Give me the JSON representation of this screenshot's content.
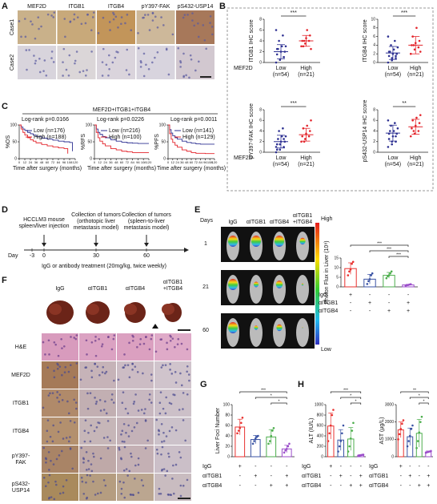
{
  "figure": {
    "panel_labels": [
      "A",
      "B",
      "C",
      "D",
      "E",
      "F",
      "G",
      "H"
    ],
    "a": {
      "columns": [
        "MEF2D",
        "ITGB1",
        "ITGB4",
        "pY397-FAK",
        "pS432-USP14"
      ],
      "rows": [
        "Case1",
        "Case2"
      ]
    },
    "b": {
      "group_label": "MEF2D"
    },
    "c": {
      "title": "MEF2D+ITGB1+ITGB4"
    },
    "d": {
      "injection": [
        "HCCLM3 mouse",
        "spleen/liver injection"
      ],
      "collection_1": [
        "Collection of tumors",
        "(orthotopic liver",
        "metastasis model)"
      ],
      "collection_2": [
        "Collection of tumors",
        "(spleen-to-liver",
        "metastasis model)"
      ],
      "day_label": "Day",
      "days": [
        "-3",
        "0",
        "30",
        "60"
      ],
      "treatment": "IgG or antibody treatment (20mg/kg, twice weekly)"
    },
    "e": {
      "columns": [
        "IgG",
        "αITGB1",
        "αITGB4"
      ],
      "combo": [
        "αITGB1",
        "+ITGB4"
      ],
      "days_label": "Days",
      "days": [
        "1",
        "21",
        "60"
      ],
      "scale_high": "High",
      "scale_low": "Low"
    },
    "f": {
      "columns": [
        "IgG",
        "αITGB1",
        "αITGB4"
      ],
      "combo": [
        "αITGB1",
        "+ITGB4"
      ],
      "rows": [
        [
          "H&E"
        ],
        [
          "MEF2D"
        ],
        [
          "ITGB1"
        ],
        [
          "ITGB4"
        ],
        [
          "pY397-",
          "FAK"
        ],
        [
          "pS432-",
          "USP14"
        ]
      ]
    }
  },
  "chart_data": [
    {
      "type": "dot",
      "ylabel": "ITGB1 IHC score",
      "categories": [
        "Low",
        "High"
      ],
      "n_labels": [
        "(n=54)",
        "(n=21)"
      ],
      "ylim": [
        0,
        8
      ],
      "yticks": [
        0,
        2,
        4,
        6,
        8
      ],
      "significance": "***",
      "groups": [
        {
          "color": "#2e3192",
          "mean": 2,
          "sd": 1.3,
          "points": [
            0,
            0.5,
            1,
            1.5,
            2,
            2,
            2.5,
            3,
            3,
            4,
            5,
            6,
            0.5,
            1,
            2.5
          ]
        },
        {
          "color": "#e3242b",
          "mean": 4,
          "sd": 1,
          "points": [
            3,
            3.5,
            4,
            4,
            4.5,
            5,
            3,
            6,
            2.5,
            4
          ]
        }
      ]
    },
    {
      "type": "dot",
      "ylabel": "ITGB4 IHC score",
      "categories": [
        "Low",
        "High"
      ],
      "n_labels": [
        "(n=54)",
        "(n=21)"
      ],
      "ylim": [
        0,
        10
      ],
      "yticks": [
        0,
        2,
        4,
        6,
        8,
        10
      ],
      "significance": "***",
      "groups": [
        {
          "color": "#2e3192",
          "mean": 2.2,
          "sd": 1.5,
          "points": [
            0,
            0.5,
            1,
            1.5,
            2,
            2,
            2.5,
            3,
            3.5,
            4,
            5,
            6,
            1,
            1.5,
            2.5
          ]
        },
        {
          "color": "#e3242b",
          "mean": 4,
          "sd": 2,
          "points": [
            2,
            3,
            3.5,
            4,
            4.5,
            5,
            6,
            8,
            2.5,
            4
          ]
        }
      ]
    },
    {
      "type": "dot",
      "ylabel": "pY397-FAK IHC score",
      "categories": [
        "Low",
        "High"
      ],
      "n_labels": [
        "(n=54)",
        "(n=21)"
      ],
      "ylim": [
        0,
        8
      ],
      "yticks": [
        0,
        2,
        4,
        6,
        8
      ],
      "significance": "***",
      "groups": [
        {
          "color": "#2e3192",
          "mean": 2,
          "sd": 1.2,
          "points": [
            0,
            0.5,
            1,
            1.5,
            2,
            2,
            2.5,
            3,
            3,
            4,
            4.5,
            1,
            1.5,
            2.5,
            0.5
          ]
        },
        {
          "color": "#e3242b",
          "mean": 3.3,
          "sd": 1.2,
          "points": [
            2,
            2.5,
            3,
            3,
            3.5,
            4,
            4.5,
            5,
            6,
            2
          ]
        }
      ]
    },
    {
      "type": "dot",
      "ylabel": "pS432-USP14 IHC score",
      "categories": [
        "Low",
        "High"
      ],
      "n_labels": [
        "(n=54)",
        "(n=21)"
      ],
      "ylim": [
        0,
        8
      ],
      "yticks": [
        0,
        2,
        4,
        6,
        8
      ],
      "significance": "**",
      "groups": [
        {
          "color": "#2e3192",
          "mean": 3.6,
          "sd": 1.5,
          "points": [
            1,
            1.5,
            2,
            2.5,
            3,
            3.5,
            4,
            4,
            4.5,
            5,
            5.5,
            6,
            2,
            3,
            3.5
          ]
        },
        {
          "color": "#e3242b",
          "mean": 4.8,
          "sd": 1.4,
          "points": [
            3,
            3.5,
            4,
            4.5,
            5,
            5.5,
            6,
            6.5,
            7,
            4
          ]
        }
      ]
    },
    {
      "type": "line",
      "pvalue": "Log-rank p=0.0166",
      "ylabel": "%OS",
      "xlabel": "Time after surgery (months)",
      "xlim": [
        0,
        120
      ],
      "xticks": [
        0,
        12,
        24,
        36,
        48,
        60,
        72,
        84,
        96,
        108,
        120
      ],
      "ylim": [
        0,
        100
      ],
      "yticks": [
        0,
        50,
        100
      ],
      "series": [
        {
          "name": "Low (n=176)",
          "color": "#2e3192",
          "x": [
            0,
            4,
            8,
            12,
            18,
            24,
            30,
            36,
            48,
            60,
            72,
            84,
            96,
            108,
            114
          ],
          "values": [
            100,
            94,
            88,
            84,
            78,
            74,
            70,
            66,
            61,
            58,
            55,
            52,
            50,
            48,
            22
          ]
        },
        {
          "name": "High (n=188)",
          "color": "#e3242b",
          "x": [
            0,
            4,
            8,
            12,
            18,
            24,
            30,
            36,
            48,
            60,
            72,
            84,
            96,
            104
          ],
          "values": [
            100,
            88,
            78,
            70,
            62,
            56,
            52,
            47,
            42,
            38,
            35,
            32,
            30,
            15
          ]
        }
      ]
    },
    {
      "type": "line",
      "pvalue": "Log-rank p=0.0226",
      "ylabel": "%RFS",
      "xlabel": "Time after surgery (months)",
      "xlim": [
        0,
        120
      ],
      "xticks": [
        0,
        12,
        24,
        36,
        48,
        60,
        72,
        84,
        96,
        108,
        120
      ],
      "ylim": [
        0,
        100
      ],
      "yticks": [
        0,
        50,
        100
      ],
      "series": [
        {
          "name": "Low (n=216)",
          "color": "#2e3192",
          "x": [
            0,
            4,
            8,
            12,
            18,
            24,
            36,
            48,
            60,
            72,
            84,
            96,
            108,
            120
          ],
          "values": [
            100,
            88,
            78,
            72,
            66,
            62,
            56,
            52,
            49,
            47,
            46,
            45,
            45,
            45
          ]
        },
        {
          "name": "High (n=100)",
          "color": "#e3242b",
          "x": [
            0,
            4,
            8,
            12,
            18,
            24,
            36,
            48,
            60,
            72,
            84,
            96,
            108,
            120
          ],
          "values": [
            100,
            78,
            62,
            52,
            44,
            38,
            30,
            26,
            22,
            20,
            18,
            18,
            18,
            18
          ]
        }
      ]
    },
    {
      "type": "line",
      "pvalue": "Log-rank p=0.0011",
      "ylabel": "%PFS",
      "xlabel": "Time after surgery (months)",
      "xlim": [
        0,
        120
      ],
      "xticks": [
        0,
        12,
        24,
        36,
        48,
        60,
        72,
        84,
        96,
        108,
        120
      ],
      "ylim": [
        0,
        100
      ],
      "yticks": [
        0,
        50,
        100
      ],
      "series": [
        {
          "name": "Low (n=141)",
          "color": "#2e3192",
          "x": [
            0,
            4,
            8,
            12,
            18,
            24,
            36,
            48,
            60,
            72,
            84,
            96,
            108,
            120
          ],
          "values": [
            100,
            86,
            76,
            68,
            62,
            58,
            52,
            48,
            46,
            44,
            43,
            43,
            43,
            43
          ]
        },
        {
          "name": "High (n=129)",
          "color": "#e3242b",
          "x": [
            0,
            4,
            8,
            12,
            18,
            24,
            36,
            48,
            60,
            72,
            84,
            96,
            108,
            120
          ],
          "values": [
            100,
            74,
            58,
            48,
            40,
            34,
            26,
            22,
            18,
            16,
            16,
            15,
            15,
            15
          ]
        }
      ]
    },
    {
      "type": "bar",
      "ylabel": "Photon Flux in Liver (10⁸)",
      "ylim": [
        0,
        15
      ],
      "yticks": [
        0,
        5,
        10,
        15
      ],
      "colors": [
        "#e8312f",
        "#3a53a4",
        "#4cae4c",
        "#9b4dca"
      ],
      "values": [
        9.5,
        4,
        6,
        1
      ],
      "errors": [
        3,
        2.5,
        1.5,
        0.3
      ],
      "points": [
        [
          6,
          8,
          9,
          12,
          13
        ],
        [
          1.5,
          3,
          4,
          6,
          7
        ],
        [
          4.5,
          5.5,
          6,
          7,
          8
        ],
        [
          0.7,
          0.9,
          1,
          1.2,
          1.4
        ]
      ],
      "significance": [
        "***",
        "***",
        "***"
      ],
      "treatments": [
        {
          "name": "IgG",
          "signs": [
            "+",
            "-",
            "-",
            "-"
          ]
        },
        {
          "name": "αITGB1",
          "signs": [
            "-",
            "+",
            "-",
            "+"
          ]
        },
        {
          "name": "αITGB4",
          "signs": [
            "-",
            "-",
            "+",
            "+"
          ]
        }
      ]
    },
    {
      "type": "bar",
      "ylabel": "Liver Foci Number",
      "ylim": [
        0,
        100
      ],
      "yticks": [
        0,
        20,
        40,
        60,
        80,
        100
      ],
      "colors": [
        "#e8312f",
        "#3a53a4",
        "#4cae4c",
        "#9b4dca"
      ],
      "values": [
        57,
        33,
        38,
        15
      ],
      "errors": [
        15,
        8,
        14,
        7
      ],
      "points": [
        [
          45,
          50,
          55,
          65,
          75
        ],
        [
          25,
          30,
          35,
          38,
          40
        ],
        [
          25,
          30,
          40,
          50,
          55
        ],
        [
          8,
          12,
          15,
          20,
          25
        ]
      ],
      "significance": [
        "***",
        "*",
        "*"
      ],
      "treatments": [
        {
          "name": "IgG",
          "signs": [
            "+",
            "-",
            "-",
            "-"
          ]
        },
        {
          "name": "αITGB1",
          "signs": [
            "-",
            "+",
            "-",
            "+"
          ]
        },
        {
          "name": "αITGB4",
          "signs": [
            "-",
            "-",
            "+",
            "+"
          ]
        }
      ]
    },
    {
      "type": "bar",
      "ylabel": "ALT (IU/L)",
      "ylim": [
        0,
        1000
      ],
      "yticks": [
        0,
        200,
        400,
        600,
        800,
        1000
      ],
      "colors": [
        "#e8312f",
        "#3a53a4",
        "#4cae4c",
        "#9b4dca"
      ],
      "values": [
        590,
        320,
        340,
        30
      ],
      "errors": [
        250,
        200,
        220,
        10
      ],
      "points": [
        [
          300,
          450,
          600,
          800,
          900
        ],
        [
          100,
          200,
          300,
          450,
          600
        ],
        [
          100,
          200,
          350,
          500,
          650
        ],
        [
          20,
          25,
          30,
          35,
          40
        ]
      ],
      "significance": [
        "***",
        "*",
        "*"
      ],
      "treatments": [
        {
          "name": "IgG",
          "signs": [
            "+",
            "-",
            "-",
            "-"
          ]
        },
        {
          "name": "αITGB1",
          "signs": [
            "-",
            "+",
            "-",
            "+"
          ]
        },
        {
          "name": "αITGB4",
          "signs": [
            "-",
            "-",
            "+",
            "+"
          ]
        }
      ]
    },
    {
      "type": "bar",
      "ylabel": "AST (μg/L)",
      "ylim": [
        0,
        3000
      ],
      "yticks": [
        0,
        1000,
        2000,
        3000
      ],
      "colors": [
        "#e8312f",
        "#3a53a4",
        "#4cae4c",
        "#9b4dca"
      ],
      "values": [
        1550,
        1150,
        1350,
        280
      ],
      "errors": [
        450,
        500,
        800,
        50
      ],
      "points": [
        [
          1000,
          1300,
          1600,
          1900,
          2100
        ],
        [
          600,
          900,
          1200,
          1600,
          1800
        ],
        [
          500,
          900,
          1400,
          2000,
          2300
        ],
        [
          230,
          260,
          280,
          300,
          330
        ]
      ],
      "significance": [
        "**",
        "*",
        "*"
      ],
      "treatments": [
        {
          "name": "IgG",
          "signs": [
            "+",
            "-",
            "-",
            "-"
          ]
        },
        {
          "name": "αITGB1",
          "signs": [
            "-",
            "+",
            "-",
            "+"
          ]
        },
        {
          "name": "αITGB4",
          "signs": [
            "-",
            "-",
            "+",
            "+"
          ]
        }
      ]
    }
  ]
}
